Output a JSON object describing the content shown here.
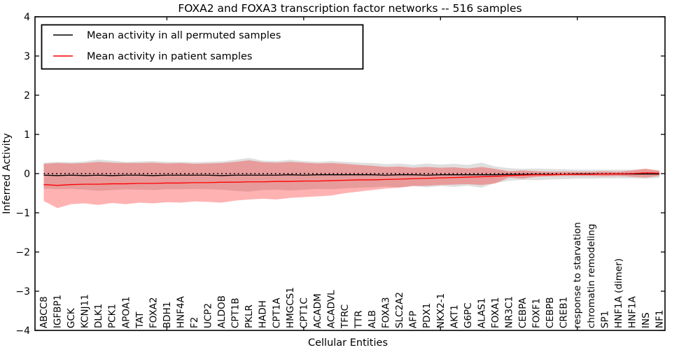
{
  "figure": {
    "title": "FOXA2 and FOXA3 transcription factor networks -- 516 samples"
  },
  "chart_data": {
    "type": "line",
    "title": "FOXA2 and FOXA3 transcription factor networks -- 516 samples",
    "xlabel": "Cellular Entities",
    "ylabel": "Inferred Activity",
    "ylim": [
      -4,
      4
    ],
    "yticks": [
      -4,
      -3,
      -2,
      -1,
      0,
      1,
      2,
      3,
      4
    ],
    "ytick_labels": [
      "−4",
      "−3",
      "−2",
      "−1",
      "0",
      "1",
      "2",
      "3",
      "4"
    ],
    "grid": false,
    "zero_line": {
      "y": 0,
      "style": "dotted",
      "color": "#000000"
    },
    "legend": {
      "position": "upper left",
      "entries": [
        "Mean activity in all permuted samples",
        "Mean activity in patient samples"
      ]
    },
    "colors": {
      "permuted_line": "#000000",
      "patient_line": "#ff0000",
      "permuted_band": "#808080",
      "patient_band": "#ff0000"
    },
    "categories": [
      "ABCC8",
      "IGFBP1",
      "GCK",
      "KCNJ11",
      "DLK1",
      "PCK1",
      "APOA1",
      "TAT",
      "FOXA2",
      "BDH1",
      "HNF4A",
      "F2",
      "UCP2",
      "ALDOB",
      "CPT1B",
      "PKLR",
      "HADH",
      "CPT1A",
      "HMGCS1",
      "CPT1C",
      "ACADM",
      "ACADVL",
      "TFRC",
      "TTR",
      "ALB",
      "FOXA3",
      "SLC2A2",
      "AFP",
      "PDX1",
      "NKX2-1",
      "AKT1",
      "G6PC",
      "ALAS1",
      "FOXA1",
      "NR3C1",
      "CEBPA",
      "FOXF1",
      "CEBPB",
      "CREB1",
      "response to starvation",
      "chromatin remodeling",
      "SP1",
      "HNF1A (dimer)",
      "HNF1A",
      "INS",
      "NF1"
    ],
    "series": [
      {
        "name": "Mean activity in all permuted samples",
        "color": "#000000",
        "band_fill": "#808080",
        "band_alpha": 0.25,
        "values": [
          -0.04,
          -0.05,
          -0.04,
          -0.05,
          -0.04,
          -0.05,
          -0.04,
          -0.04,
          -0.05,
          -0.04,
          -0.04,
          -0.04,
          -0.04,
          -0.05,
          -0.04,
          -0.04,
          -0.04,
          -0.04,
          -0.03,
          -0.04,
          -0.03,
          -0.03,
          -0.03,
          -0.03,
          -0.03,
          -0.04,
          -0.03,
          -0.03,
          -0.04,
          -0.03,
          -0.03,
          -0.03,
          -0.03,
          -0.03,
          -0.02,
          -0.02,
          -0.02,
          -0.02,
          -0.02,
          -0.01,
          -0.01,
          -0.01,
          -0.01,
          -0.01,
          -0.01,
          -0.01
        ],
        "band_upper": [
          0.28,
          0.3,
          0.29,
          0.31,
          0.36,
          0.33,
          0.3,
          0.31,
          0.32,
          0.3,
          0.3,
          0.29,
          0.3,
          0.31,
          0.35,
          0.4,
          0.33,
          0.32,
          0.35,
          0.32,
          0.3,
          0.32,
          0.3,
          0.28,
          0.27,
          0.24,
          0.26,
          0.22,
          0.26,
          0.23,
          0.25,
          0.22,
          0.28,
          0.18,
          0.14,
          0.12,
          0.13,
          0.12,
          0.11,
          0.1,
          0.1,
          0.1,
          0.1,
          0.1,
          0.11,
          0.09
        ],
        "band_lower": [
          -0.38,
          -0.4,
          -0.39,
          -0.41,
          -0.44,
          -0.42,
          -0.4,
          -0.41,
          -0.42,
          -0.4,
          -0.4,
          -0.39,
          -0.4,
          -0.41,
          -0.44,
          -0.46,
          -0.42,
          -0.41,
          -0.43,
          -0.41,
          -0.39,
          -0.4,
          -0.38,
          -0.36,
          -0.35,
          -0.33,
          -0.35,
          -0.31,
          -0.35,
          -0.32,
          -0.34,
          -0.31,
          -0.36,
          -0.24,
          -0.18,
          -0.16,
          -0.17,
          -0.15,
          -0.14,
          -0.13,
          -0.13,
          -0.12,
          -0.12,
          -0.12,
          -0.13,
          -0.11
        ]
      },
      {
        "name": "Mean activity in patient samples",
        "color": "#ff0000",
        "band_fill": "#ff0000",
        "band_alpha": 0.3,
        "values": [
          -0.28,
          -0.3,
          -0.28,
          -0.27,
          -0.27,
          -0.26,
          -0.26,
          -0.25,
          -0.25,
          -0.24,
          -0.24,
          -0.23,
          -0.23,
          -0.22,
          -0.22,
          -0.21,
          -0.21,
          -0.2,
          -0.2,
          -0.19,
          -0.19,
          -0.18,
          -0.17,
          -0.16,
          -0.16,
          -0.15,
          -0.14,
          -0.13,
          -0.12,
          -0.11,
          -0.1,
          -0.09,
          -0.08,
          -0.07,
          -0.05,
          -0.04,
          -0.03,
          -0.03,
          -0.02,
          -0.02,
          -0.02,
          -0.01,
          -0.01,
          0.0,
          0.02,
          0.01
        ],
        "band_upper": [
          0.25,
          0.27,
          0.26,
          0.27,
          0.3,
          0.28,
          0.27,
          0.27,
          0.28,
          0.26,
          0.27,
          0.25,
          0.26,
          0.27,
          0.3,
          0.34,
          0.29,
          0.28,
          0.3,
          0.28,
          0.26,
          0.27,
          0.25,
          0.22,
          0.2,
          0.17,
          0.18,
          0.15,
          0.17,
          0.15,
          0.16,
          0.13,
          0.17,
          0.12,
          0.06,
          0.08,
          0.06,
          0.05,
          0.05,
          0.05,
          0.05,
          0.06,
          0.05,
          0.08,
          0.13,
          0.07
        ],
        "band_lower": [
          -0.7,
          -0.88,
          -0.78,
          -0.76,
          -0.8,
          -0.75,
          -0.78,
          -0.74,
          -0.76,
          -0.73,
          -0.74,
          -0.71,
          -0.72,
          -0.74,
          -0.69,
          -0.66,
          -0.64,
          -0.66,
          -0.62,
          -0.6,
          -0.58,
          -0.56,
          -0.5,
          -0.46,
          -0.42,
          -0.38,
          -0.36,
          -0.32,
          -0.31,
          -0.29,
          -0.28,
          -0.27,
          -0.29,
          -0.25,
          -0.1,
          -0.13,
          -0.08,
          -0.07,
          -0.06,
          -0.06,
          -0.06,
          -0.07,
          -0.06,
          -0.08,
          -0.1,
          -0.06
        ]
      }
    ]
  }
}
